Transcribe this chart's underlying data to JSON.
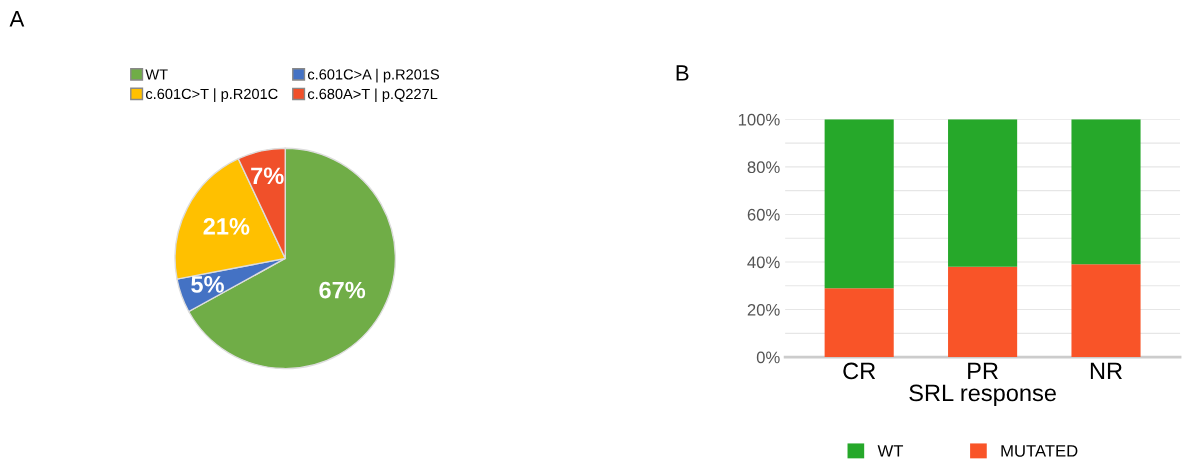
{
  "chart_data": [
    {
      "type": "pie",
      "title": "A",
      "categories": [
        "WT",
        "c.601C>A | p.R201S",
        "c.601C>T | p.R201C",
        "c.680A>T | p.Q227L"
      ],
      "values": [
        67,
        5,
        21,
        7
      ],
      "colors": [
        "#70ad47",
        "#4472c4",
        "#ffc000",
        "#f0502a"
      ],
      "value_labels": [
        "67%",
        "5%",
        "21%",
        "7%"
      ],
      "legend": "top"
    },
    {
      "type": "bar",
      "title": "B",
      "categories": [
        "CR",
        "PR",
        "NR"
      ],
      "xlabel": "SRL response",
      "stacked": true,
      "series": [
        {
          "name": "MUTATED",
          "color": "#f95428",
          "values": [
            29,
            38,
            39
          ]
        },
        {
          "name": "WT",
          "color": "#26a82a",
          "values": [
            71,
            62,
            61
          ]
        }
      ],
      "ylim": [
        0,
        100
      ],
      "yticks": [
        {
          "value": 0,
          "label": "0%"
        },
        {
          "value": 10,
          "label": null
        },
        {
          "value": 20,
          "label": "20%"
        },
        {
          "value": 30,
          "label": null
        },
        {
          "value": 40,
          "label": "40%"
        },
        {
          "value": 50,
          "label": null
        },
        {
          "value": 60,
          "label": "60%"
        },
        {
          "value": 70,
          "label": null
        },
        {
          "value": 80,
          "label": "80%"
        },
        {
          "value": 90,
          "label": null
        },
        {
          "value": 100,
          "label": "100%"
        }
      ],
      "grid": "y",
      "legend": "bottom"
    }
  ]
}
